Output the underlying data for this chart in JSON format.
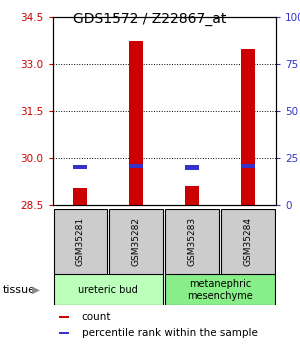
{
  "title": "GDS1572 / Z22867_at",
  "samples": [
    "GSM35281",
    "GSM35282",
    "GSM35283",
    "GSM35284"
  ],
  "count_values": [
    29.05,
    33.75,
    29.1,
    33.5
  ],
  "percentile_values": [
    19.5,
    20.0,
    19.0,
    20.0
  ],
  "ymin": 28.5,
  "ymax": 34.5,
  "yticks_left": [
    28.5,
    30.0,
    31.5,
    33.0,
    34.5
  ],
  "yticks_right_vals": [
    0,
    25,
    50,
    75,
    100
  ],
  "yticks_right_labels": [
    "0",
    "25",
    "50",
    "75",
    "100%"
  ],
  "grid_yticks": [
    30.0,
    31.5,
    33.0
  ],
  "bar_width": 0.25,
  "blue_bar_width": 0.25,
  "count_color": "#cc0000",
  "percentile_color": "#3333cc",
  "sample_box_color": "#cccccc",
  "tissue_groups": [
    {
      "label": "ureteric bud",
      "samples": [
        0,
        1
      ],
      "color": "#bbffbb"
    },
    {
      "label": "metanephric\nmesenchyme",
      "samples": [
        2,
        3
      ],
      "color": "#88ee88"
    }
  ],
  "tissue_label": "tissue",
  "legend_items": [
    {
      "color": "#cc0000",
      "label": "count"
    },
    {
      "color": "#3333cc",
      "label": "percentile rank within the sample"
    }
  ],
  "left_axis_color": "#cc0000",
  "right_axis_color": "#3333cc"
}
